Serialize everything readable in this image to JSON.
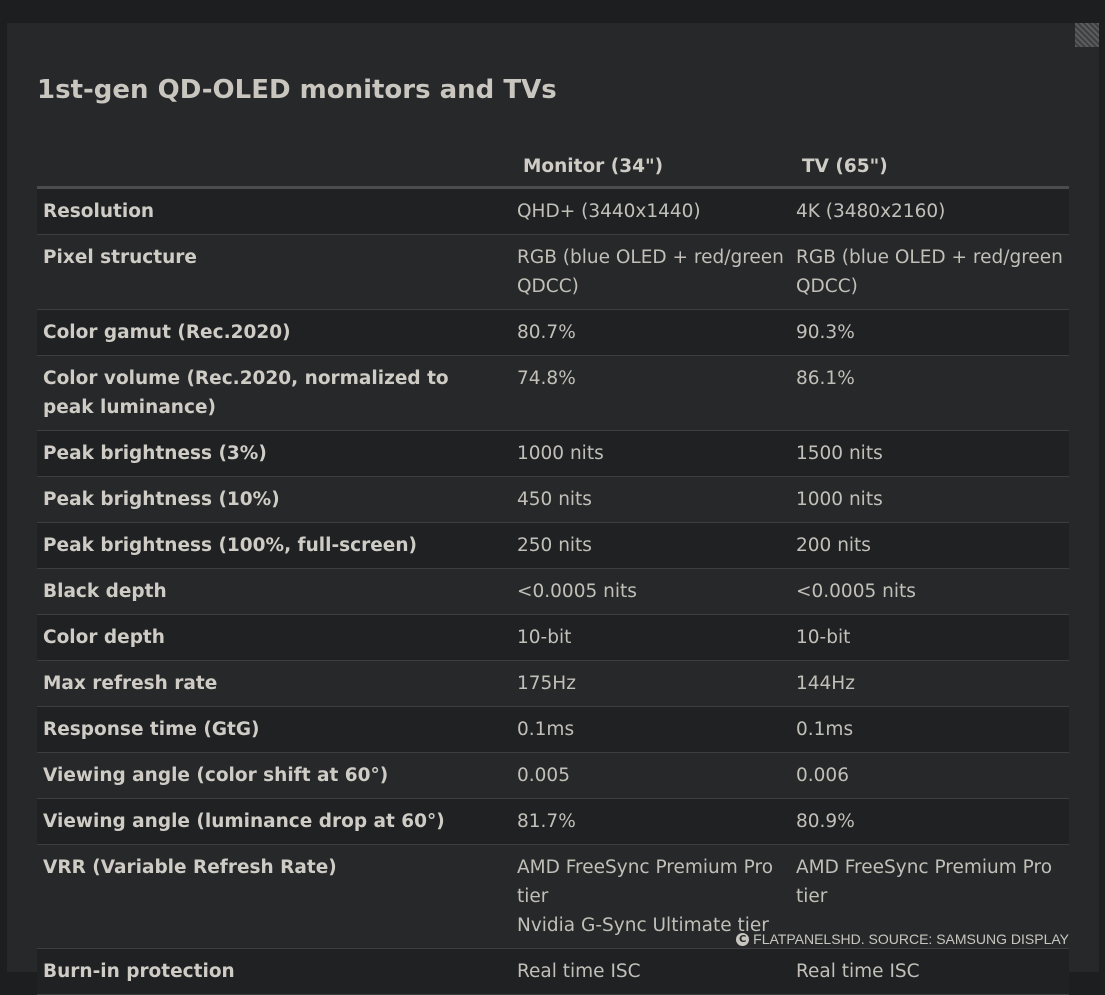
{
  "title": "1st-gen QD-OLED monitors and TVs",
  "table": {
    "headers": [
      "",
      "Monitor (34\")",
      "TV (65\")"
    ],
    "rows": [
      {
        "label": "Resolution",
        "monitor": [
          "QHD+ (3440x1440)"
        ],
        "tv": [
          "4K (3480x2160)"
        ]
      },
      {
        "label": "Pixel structure",
        "monitor": [
          "RGB (blue OLED + red/green QDCC)"
        ],
        "tv": [
          "RGB (blue OLED + red/green QDCC)"
        ]
      },
      {
        "label": "Color gamut (Rec.2020)",
        "monitor": [
          "80.7%"
        ],
        "tv": [
          "90.3%"
        ]
      },
      {
        "label": "Color volume (Rec.2020, normalized to peak luminance)",
        "monitor": [
          "74.8%"
        ],
        "tv": [
          "86.1%"
        ]
      },
      {
        "label": "Peak brightness (3%)",
        "monitor": [
          "1000 nits"
        ],
        "tv": [
          "1500 nits"
        ]
      },
      {
        "label": "Peak brightness (10%)",
        "monitor": [
          "450 nits"
        ],
        "tv": [
          "1000 nits"
        ]
      },
      {
        "label": "Peak brightness (100%, full-screen)",
        "monitor": [
          "250 nits"
        ],
        "tv": [
          "200 nits"
        ]
      },
      {
        "label": "Black depth",
        "monitor": [
          "<0.0005 nits"
        ],
        "tv": [
          "<0.0005 nits"
        ]
      },
      {
        "label": "Color depth",
        "monitor": [
          "10-bit"
        ],
        "tv": [
          "10-bit"
        ]
      },
      {
        "label": "Max refresh rate",
        "monitor": [
          "175Hz"
        ],
        "tv": [
          "144Hz"
        ]
      },
      {
        "label": "Response time (GtG)",
        "monitor": [
          "0.1ms"
        ],
        "tv": [
          "0.1ms"
        ]
      },
      {
        "label": "Viewing angle (color shift at 60°)",
        "monitor": [
          "0.005"
        ],
        "tv": [
          "0.006"
        ]
      },
      {
        "label": "Viewing angle (luminance drop at 60°)",
        "monitor": [
          "81.7%"
        ],
        "tv": [
          "80.9%"
        ]
      },
      {
        "label": "VRR (Variable Refresh Rate)",
        "monitor": [
          "AMD FreeSync Premium Pro tier",
          "Nvidia G-Sync Ultimate tier"
        ],
        "tv": [
          "AMD FreeSync Premium Pro tier"
        ]
      },
      {
        "label": "Burn-in protection",
        "monitor": [
          "Real time ISC"
        ],
        "tv": [
          "Real time ISC"
        ]
      }
    ]
  },
  "credit": {
    "icon": "copyright-icon",
    "icon_glyph": "C",
    "text": "FLATPANELSHD. SOURCE: SAMSUNG DISPLAY"
  },
  "colors": {
    "background": "#1c1e20",
    "panel": "#262829",
    "row_alt": "#1f2123",
    "text": "#c9c6c0"
  }
}
